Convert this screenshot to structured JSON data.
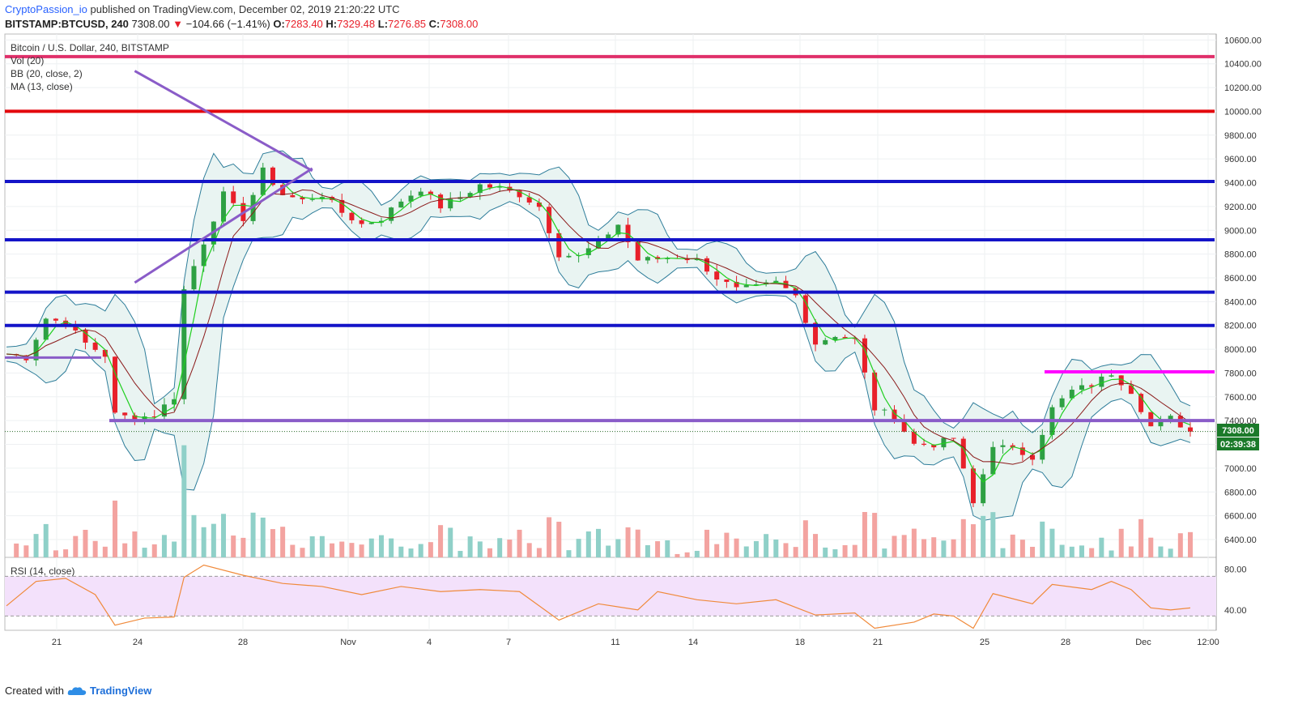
{
  "header": {
    "author": "CryptoPassion_io",
    "published": " published on TradingView.com, December 02, 2019 21:20:22 UTC",
    "symbol": "BITSTAMP:BTCUSD, 240",
    "last": "7308.00",
    "change_arrow": "▼",
    "change": "−104.66 (−1.41%)",
    "o_label": "O:",
    "o": "7283.40",
    "h_label": "H:",
    "h": "7329.48",
    "l_label": "L:",
    "l": "7276.85",
    "c_label": "C:",
    "c": "7308.00"
  },
  "legend": {
    "title": "Bitcoin / U.S. Dollar, 240, BITSTAMP",
    "vol": "Vol (20)",
    "bb": "BB (20, close, 2)",
    "ma": "MA (13, close)",
    "rsi": "RSI (14, close)"
  },
  "price_labels": {
    "last_price": "7308.00",
    "countdown": "02:39:38"
  },
  "footer": {
    "created_with": "Created with",
    "brand": "TradingView",
    "icon": "tradingview-cloud-icon"
  },
  "colors": {
    "up": "#26a69a",
    "down": "#ef5350",
    "up_body": "#2ea043",
    "down_body": "#e8202a",
    "bb": "#2e7d9a",
    "bb_fill": "#e9f4f2",
    "ma13": "#1ecf1e",
    "ma_slow": "#8b1a1a",
    "red_line": "#e3070d",
    "pink_line": "#e0306a",
    "blue_line": "#1414c8",
    "purple_line": "#8a5cc8",
    "magenta_line": "#ff00ff",
    "rsi_line": "#f08a3b",
    "rsi_band": "#f3e1fb"
  },
  "chart_data": {
    "type": "candlestick",
    "instrument": "BITSTAMP:BTCUSD",
    "timeframe": "240",
    "ylim": [
      6250,
      10650
    ],
    "y_ticks": [
      6400,
      6600,
      6800,
      7000,
      7200,
      7400,
      7600,
      7800,
      8000,
      8200,
      8400,
      8600,
      8800,
      9000,
      9200,
      9400,
      9600,
      9800,
      10000,
      10200,
      10400,
      10600
    ],
    "x_ticks": [
      "21",
      "24",
      "28",
      "Nov",
      "4",
      "7",
      "11",
      "14",
      "18",
      "21",
      "25",
      "28",
      "Dec",
      "12:00"
    ],
    "price_path": [
      [
        0,
        7960
      ],
      [
        2,
        7930
      ],
      [
        4,
        8260
      ],
      [
        6,
        8220
      ],
      [
        8,
        8050
      ],
      [
        10,
        7950
      ],
      [
        11,
        7450
      ],
      [
        13,
        7420
      ],
      [
        15,
        7450
      ],
      [
        17,
        7600
      ],
      [
        18,
        8500
      ],
      [
        20,
        8900
      ],
      [
        22,
        9300
      ],
      [
        24,
        9100
      ],
      [
        26,
        9500
      ],
      [
        28,
        9300
      ],
      [
        30,
        9250
      ],
      [
        32,
        9300
      ],
      [
        34,
        9150
      ],
      [
        36,
        9050
      ],
      [
        38,
        9100
      ],
      [
        40,
        9250
      ],
      [
        42,
        9350
      ],
      [
        44,
        9200
      ],
      [
        46,
        9280
      ],
      [
        48,
        9380
      ],
      [
        50,
        9350
      ],
      [
        52,
        9300
      ],
      [
        54,
        9200
      ],
      [
        56,
        8800
      ],
      [
        58,
        8780
      ],
      [
        60,
        8900
      ],
      [
        62,
        9050
      ],
      [
        64,
        8750
      ],
      [
        66,
        8760
      ],
      [
        68,
        8780
      ],
      [
        70,
        8750
      ],
      [
        72,
        8600
      ],
      [
        74,
        8500
      ],
      [
        76,
        8520
      ],
      [
        78,
        8560
      ],
      [
        80,
        8450
      ],
      [
        82,
        8050
      ],
      [
        84,
        8120
      ],
      [
        86,
        8080
      ],
      [
        88,
        7500
      ],
      [
        90,
        7430
      ],
      [
        92,
        7200
      ],
      [
        94,
        7200
      ],
      [
        96,
        7250
      ],
      [
        98,
        6700
      ],
      [
        100,
        7200
      ],
      [
        102,
        7150
      ],
      [
        104,
        7100
      ],
      [
        106,
        7500
      ],
      [
        108,
        7650
      ],
      [
        110,
        7700
      ],
      [
        112,
        7800
      ],
      [
        114,
        7650
      ],
      [
        116,
        7350
      ],
      [
        118,
        7420
      ],
      [
        120,
        7308
      ]
    ],
    "horizontal_levels": [
      {
        "price": 10460,
        "color": "pink"
      },
      {
        "price": 10000,
        "color": "red"
      },
      {
        "price": 9410,
        "color": "blue"
      },
      {
        "price": 8920,
        "color": "blue"
      },
      {
        "price": 8480,
        "color": "blue"
      },
      {
        "price": 8200,
        "color": "blue"
      },
      {
        "price": 7810,
        "color": "magenta"
      },
      {
        "price": 7400,
        "color": "purple"
      },
      {
        "price": 7930,
        "color": "purple"
      }
    ],
    "volume": "bars by candle, green up / red down",
    "rsi": {
      "period": 14,
      "ylim": [
        20,
        90
      ],
      "y_ticks": [
        40,
        80
      ],
      "band": [
        34,
        73
      ],
      "values": [
        [
          0,
          44
        ],
        [
          3,
          68
        ],
        [
          6,
          71
        ],
        [
          9,
          55
        ],
        [
          11,
          25
        ],
        [
          14,
          32
        ],
        [
          17,
          33
        ],
        [
          18,
          72
        ],
        [
          20,
          84
        ],
        [
          24,
          74
        ],
        [
          28,
          66
        ],
        [
          32,
          63
        ],
        [
          36,
          55
        ],
        [
          40,
          63
        ],
        [
          44,
          58
        ],
        [
          48,
          60
        ],
        [
          52,
          58
        ],
        [
          56,
          30
        ],
        [
          60,
          46
        ],
        [
          64,
          40
        ],
        [
          66,
          58
        ],
        [
          70,
          50
        ],
        [
          74,
          46
        ],
        [
          78,
          50
        ],
        [
          82,
          35
        ],
        [
          86,
          37
        ],
        [
          88,
          22
        ],
        [
          92,
          28
        ],
        [
          94,
          36
        ],
        [
          96,
          34
        ],
        [
          98,
          22
        ],
        [
          100,
          56
        ],
        [
          104,
          46
        ],
        [
          106,
          65
        ],
        [
          110,
          60
        ],
        [
          112,
          68
        ],
        [
          114,
          60
        ],
        [
          116,
          42
        ],
        [
          118,
          40
        ],
        [
          120,
          42
        ]
      ]
    },
    "annotations": [
      {
        "type": "trendline",
        "from": [
          13,
          10340
        ],
        "to": [
          31,
          9500
        ],
        "color": "purple"
      },
      {
        "type": "trendline",
        "from": [
          13,
          8560
        ],
        "to": [
          31,
          9520
        ],
        "color": "purple"
      }
    ]
  }
}
